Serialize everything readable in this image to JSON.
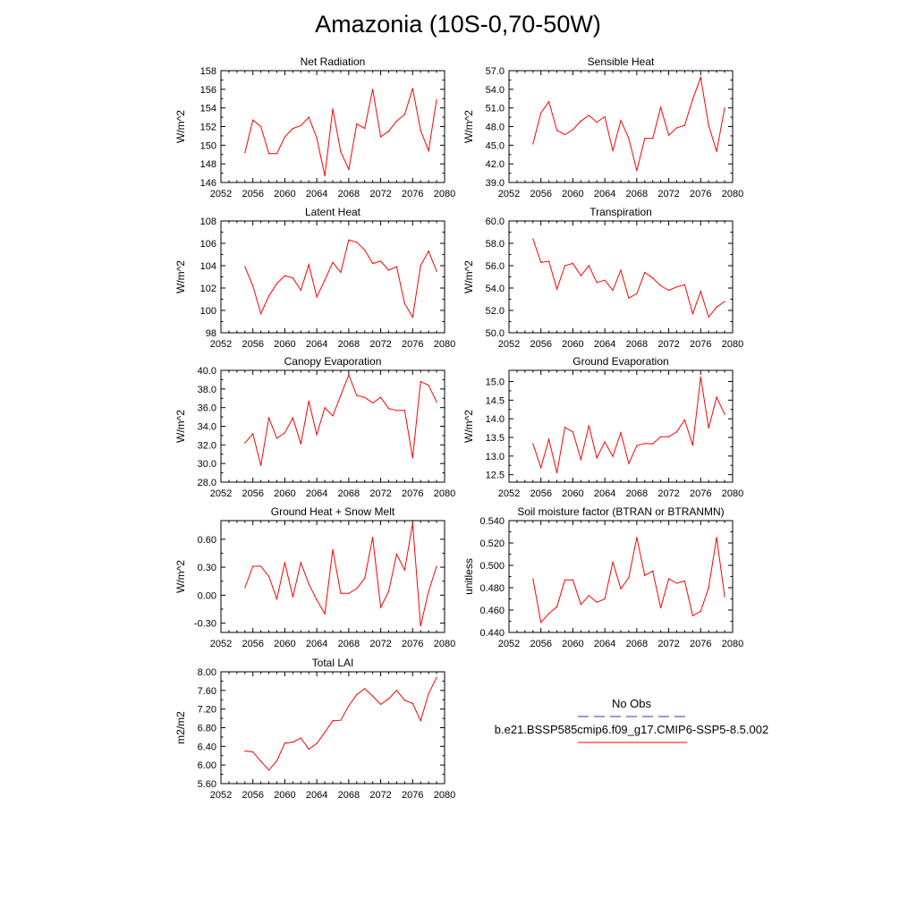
{
  "title": "Amazonia (10S-0,70-50W)",
  "legend": {
    "obs_label": "No Obs",
    "obs_color": "#3333aa",
    "model_label": "b.e21.BSSP585cmip6.f09_g17.CMIP6-SSP5-8.5.002",
    "model_color": "#ff0000"
  },
  "chart_data": [
    {
      "type": "line",
      "title": "Net Radiation",
      "ylabel": "W/m^2",
      "xlabel": "",
      "xlim": [
        2052,
        2080
      ],
      "ylim": [
        146,
        158
      ],
      "xticks": [
        2052,
        2056,
        2060,
        2064,
        2068,
        2072,
        2076,
        2080
      ],
      "yticks": [
        "146",
        "148",
        "150",
        "152",
        "154",
        "156",
        "158"
      ],
      "x": [
        2055,
        2056,
        2057,
        2058,
        2059,
        2060,
        2061,
        2062,
        2063,
        2064,
        2065,
        2066,
        2067,
        2068,
        2069,
        2070,
        2071,
        2072,
        2073,
        2074,
        2075,
        2076,
        2077,
        2078,
        2079
      ],
      "values": [
        149.2,
        152.7,
        152.0,
        149.1,
        149.1,
        150.9,
        151.8,
        152.1,
        153.0,
        150.8,
        146.7,
        153.9,
        149.3,
        147.4,
        152.3,
        151.8,
        156.0,
        150.9,
        151.5,
        152.6,
        153.3,
        156.1,
        151.6,
        149.4,
        154.9
      ]
    },
    {
      "type": "line",
      "title": "Sensible Heat",
      "ylabel": "W/m^2",
      "xlabel": "",
      "xlim": [
        2052,
        2080
      ],
      "ylim": [
        39.0,
        57.0
      ],
      "xticks": [
        2052,
        2056,
        2060,
        2064,
        2068,
        2072,
        2076,
        2080
      ],
      "yticks": [
        "39.0",
        "42.0",
        "45.0",
        "48.0",
        "51.0",
        "54.0",
        "57.0"
      ],
      "x": [
        2055,
        2056,
        2057,
        2058,
        2059,
        2060,
        2061,
        2062,
        2063,
        2064,
        2065,
        2066,
        2067,
        2068,
        2069,
        2070,
        2071,
        2072,
        2073,
        2074,
        2075,
        2076,
        2077,
        2078,
        2079
      ],
      "values": [
        45.2,
        50.2,
        52.0,
        47.4,
        46.7,
        47.5,
        48.9,
        49.8,
        48.7,
        49.6,
        44.1,
        49.0,
        46.1,
        40.9,
        46.1,
        46.1,
        51.1,
        46.6,
        47.8,
        48.2,
        52.4,
        55.9,
        48.2,
        44.0,
        51.0
      ]
    },
    {
      "type": "line",
      "title": "Latent Heat",
      "ylabel": "W/m^2",
      "xlabel": "",
      "xlim": [
        2052,
        2080
      ],
      "ylim": [
        98,
        108
      ],
      "xticks": [
        2052,
        2056,
        2060,
        2064,
        2068,
        2072,
        2076,
        2080
      ],
      "yticks": [
        "98",
        "100",
        "102",
        "104",
        "106",
        "108"
      ],
      "x": [
        2055,
        2056,
        2057,
        2058,
        2059,
        2060,
        2061,
        2062,
        2063,
        2064,
        2065,
        2066,
        2067,
        2068,
        2069,
        2070,
        2071,
        2072,
        2073,
        2074,
        2075,
        2076,
        2077,
        2078,
        2079
      ],
      "values": [
        103.9,
        102.2,
        99.7,
        101.3,
        102.4,
        103.1,
        102.9,
        101.8,
        104.1,
        101.2,
        102.7,
        104.3,
        103.4,
        106.3,
        106.1,
        105.4,
        104.2,
        104.4,
        103.6,
        103.9,
        100.6,
        99.4,
        104.0,
        105.3,
        103.5
      ]
    },
    {
      "type": "line",
      "title": "Transpiration",
      "ylabel": "W/m^2",
      "xlabel": "",
      "xlim": [
        2052,
        2080
      ],
      "ylim": [
        50.0,
        60.0
      ],
      "xticks": [
        2052,
        2056,
        2060,
        2064,
        2068,
        2072,
        2076,
        2080
      ],
      "yticks": [
        "50.0",
        "52.0",
        "54.0",
        "56.0",
        "58.0",
        "60.0"
      ],
      "x": [
        2055,
        2056,
        2057,
        2058,
        2059,
        2060,
        2061,
        2062,
        2063,
        2064,
        2065,
        2066,
        2067,
        2068,
        2069,
        2070,
        2071,
        2072,
        2073,
        2074,
        2075,
        2076,
        2077,
        2078,
        2079
      ],
      "values": [
        58.4,
        56.3,
        56.4,
        53.9,
        56.0,
        56.2,
        55.1,
        56.0,
        54.5,
        54.7,
        53.8,
        55.6,
        53.1,
        53.5,
        55.4,
        54.9,
        54.2,
        53.8,
        54.1,
        54.3,
        51.7,
        53.7,
        51.4,
        52.3,
        52.8
      ]
    },
    {
      "type": "line",
      "title": "Canopy Evaporation",
      "ylabel": "W/m^2",
      "xlabel": "",
      "xlim": [
        2052,
        2080
      ],
      "ylim": [
        28.0,
        40.0
      ],
      "xticks": [
        2052,
        2056,
        2060,
        2064,
        2068,
        2072,
        2076,
        2080
      ],
      "yticks": [
        "28.0",
        "30.0",
        "32.0",
        "34.0",
        "36.0",
        "38.0",
        "40.0"
      ],
      "x": [
        2055,
        2056,
        2057,
        2058,
        2059,
        2060,
        2061,
        2062,
        2063,
        2064,
        2065,
        2066,
        2067,
        2068,
        2069,
        2070,
        2071,
        2072,
        2073,
        2074,
        2075,
        2076,
        2077,
        2078,
        2079
      ],
      "values": [
        32.2,
        33.2,
        29.8,
        34.9,
        32.7,
        33.3,
        34.9,
        32.1,
        36.7,
        33.1,
        36.0,
        35.1,
        37.3,
        39.5,
        37.3,
        37.1,
        36.5,
        37.1,
        35.9,
        35.7,
        35.7,
        30.6,
        38.8,
        38.4,
        36.6
      ]
    },
    {
      "type": "line",
      "title": "Ground Evaporation",
      "ylabel": "W/m^2",
      "xlabel": "",
      "xlim": [
        2052,
        2080
      ],
      "ylim": [
        12.3,
        15.3
      ],
      "xticks": [
        2052,
        2056,
        2060,
        2064,
        2068,
        2072,
        2076,
        2080
      ],
      "yticks": [
        "12.5",
        "13.0",
        "13.5",
        "14.0",
        "14.5",
        "15.0"
      ],
      "ytickvalues": [
        12.5,
        13.0,
        13.5,
        14.0,
        14.5,
        15.0
      ],
      "x": [
        2055,
        2056,
        2057,
        2058,
        2059,
        2060,
        2061,
        2062,
        2063,
        2064,
        2065,
        2066,
        2067,
        2068,
        2069,
        2070,
        2071,
        2072,
        2073,
        2074,
        2075,
        2076,
        2077,
        2078,
        2079
      ],
      "values": [
        13.33,
        12.69,
        13.45,
        12.55,
        13.77,
        13.65,
        12.91,
        13.82,
        12.95,
        13.38,
        12.99,
        13.63,
        12.8,
        13.28,
        13.34,
        13.33,
        13.52,
        13.52,
        13.65,
        13.97,
        13.29,
        15.12,
        13.75,
        14.58,
        14.12
      ]
    },
    {
      "type": "line",
      "title": "Ground Heat + Snow Melt",
      "ylabel": "W/m^2",
      "xlabel": "",
      "xlim": [
        2052,
        2080
      ],
      "ylim": [
        -0.4,
        0.8
      ],
      "xticks": [
        2052,
        2056,
        2060,
        2064,
        2068,
        2072,
        2076,
        2080
      ],
      "yticks": [
        "-0.30",
        "0.00",
        "0.30",
        "0.60"
      ],
      "ytickvalues": [
        -0.3,
        0.0,
        0.3,
        0.6
      ],
      "x": [
        2055,
        2056,
        2057,
        2058,
        2059,
        2060,
        2061,
        2062,
        2063,
        2064,
        2065,
        2066,
        2067,
        2068,
        2069,
        2070,
        2071,
        2072,
        2073,
        2074,
        2075,
        2076,
        2077,
        2078,
        2079
      ],
      "values": [
        0.08,
        0.31,
        0.31,
        0.2,
        -0.04,
        0.35,
        -0.02,
        0.35,
        0.12,
        -0.05,
        -0.2,
        0.49,
        0.02,
        0.02,
        0.07,
        0.18,
        0.62,
        -0.13,
        0.04,
        0.44,
        0.27,
        0.77,
        -0.33,
        0.04,
        0.31
      ]
    },
    {
      "type": "line",
      "title": "Soil moisture factor (BTRAN or BTRANMN)",
      "ylabel": "unitless",
      "xlabel": "",
      "xlim": [
        2052,
        2080
      ],
      "ylim": [
        0.44,
        0.54
      ],
      "xticks": [
        2052,
        2056,
        2060,
        2064,
        2068,
        2072,
        2076,
        2080
      ],
      "yticks": [
        "0.440",
        "0.460",
        "0.480",
        "0.500",
        "0.520",
        "0.540"
      ],
      "x": [
        2055,
        2056,
        2057,
        2058,
        2059,
        2060,
        2061,
        2062,
        2063,
        2064,
        2065,
        2066,
        2067,
        2068,
        2069,
        2070,
        2071,
        2072,
        2073,
        2074,
        2075,
        2076,
        2077,
        2078,
        2079
      ],
      "values": [
        0.488,
        0.449,
        0.457,
        0.463,
        0.487,
        0.487,
        0.465,
        0.473,
        0.467,
        0.47,
        0.503,
        0.479,
        0.489,
        0.525,
        0.491,
        0.495,
        0.462,
        0.488,
        0.484,
        0.486,
        0.455,
        0.459,
        0.48,
        0.525,
        0.472
      ]
    },
    {
      "type": "line",
      "title": "Total LAI",
      "ylabel": "m2/m2",
      "xlabel": "",
      "xlim": [
        2052,
        2080
      ],
      "ylim": [
        5.6,
        8.0
      ],
      "xticks": [
        2052,
        2056,
        2060,
        2064,
        2068,
        2072,
        2076,
        2080
      ],
      "yticks": [
        "5.60",
        "6.00",
        "6.40",
        "6.80",
        "7.20",
        "7.60",
        "8.00"
      ],
      "x": [
        2055,
        2056,
        2057,
        2058,
        2059,
        2060,
        2061,
        2062,
        2063,
        2064,
        2065,
        2066,
        2067,
        2068,
        2069,
        2070,
        2071,
        2072,
        2073,
        2074,
        2075,
        2076,
        2077,
        2078,
        2079
      ],
      "values": [
        6.3,
        6.28,
        6.08,
        5.89,
        6.09,
        6.47,
        6.49,
        6.58,
        6.34,
        6.46,
        6.7,
        6.95,
        6.96,
        7.27,
        7.51,
        7.64,
        7.48,
        7.3,
        7.42,
        7.6,
        7.39,
        7.32,
        6.95,
        7.53,
        7.88
      ]
    }
  ]
}
